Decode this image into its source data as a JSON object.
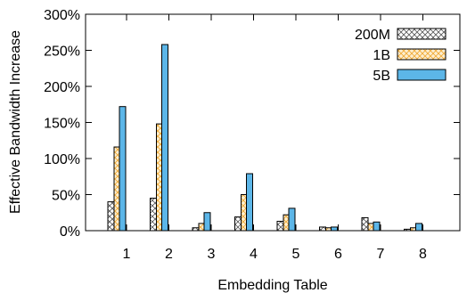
{
  "chart_data": {
    "type": "bar",
    "title": "",
    "xlabel": "Embedding Table",
    "ylabel": "Effective Bandwidth Increase",
    "categories": [
      "1",
      "2",
      "3",
      "4",
      "5",
      "6",
      "7",
      "8"
    ],
    "ylim": [
      0,
      300
    ],
    "yticks": [
      0,
      50,
      100,
      150,
      200,
      250,
      300
    ],
    "ytick_labels": [
      "0%",
      "50%",
      "100%",
      "150%",
      "200%",
      "250%",
      "300%"
    ],
    "grid": false,
    "legend_position": "top-right",
    "series": [
      {
        "name": "200M",
        "pattern": "crosshatch",
        "values": [
          40,
          45,
          4,
          19,
          13,
          5,
          18,
          2
        ]
      },
      {
        "name": "1B",
        "pattern": "crosshatch-orange",
        "values": [
          116,
          148,
          10,
          50,
          22,
          4,
          10,
          4
        ]
      },
      {
        "name": "5B",
        "pattern": "solid-blue",
        "values": [
          172,
          258,
          25,
          79,
          31,
          5,
          12,
          10
        ]
      }
    ],
    "colors": {
      "series_1_hatch": "#555555",
      "series_2_fill": "#fdeed0",
      "series_2_hatch": "#f0a830",
      "series_3_fill": "#5cb6e8"
    }
  }
}
